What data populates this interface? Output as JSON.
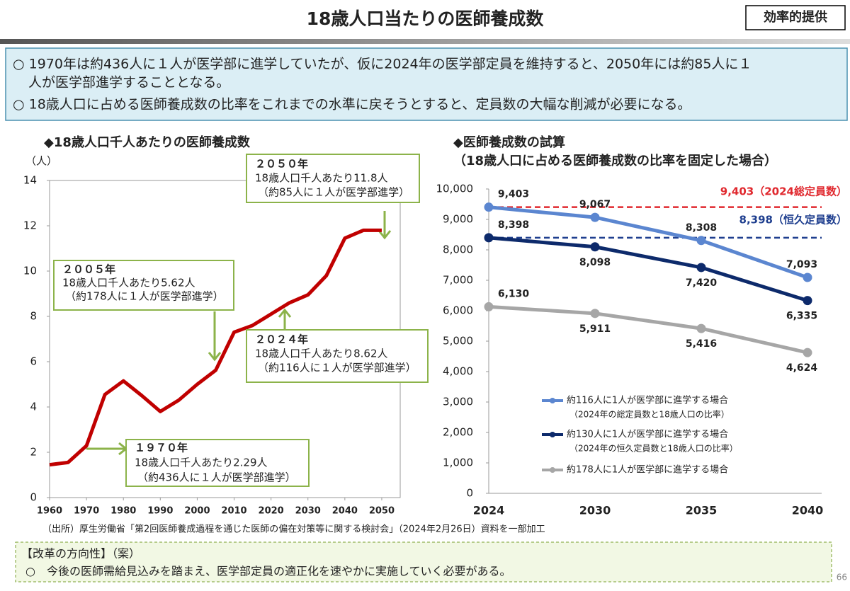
{
  "header": {
    "title": "18歳人口当たりの医師養成数",
    "badge": "効率的提供"
  },
  "summary": [
    [
      "○ 1970年は約436人に１人が医学部に進学していたが、仮に2024年の医学部定員を維持すると、2050年には約85人に１",
      "人が医学部進学することとなる。"
    ],
    [
      "○ 18歳人口に占める医師養成数の比率をこれまでの水準に戻そうとすると、定員数の大幅な削減が必要になる。"
    ]
  ],
  "chart_data": [
    {
      "type": "line",
      "title": "◆18歳人口千人あたりの医師養成数",
      "y_label": "（人）",
      "x": [
        1960,
        1965,
        1970,
        1975,
        1980,
        1985,
        1990,
        1995,
        2000,
        2005,
        2010,
        2015,
        2020,
        2025,
        2030,
        2035,
        2040,
        2045,
        2050
      ],
      "series": [
        {
          "color": "#c00000",
          "values": [
            1.45,
            1.55,
            2.29,
            4.55,
            5.15,
            4.5,
            3.8,
            4.3,
            5.0,
            5.62,
            7.3,
            7.6,
            8.1,
            8.6,
            8.95,
            9.8,
            11.45,
            11.8,
            11.8
          ]
        }
      ],
      "xlim": [
        1960,
        2055
      ],
      "xticks": [
        1960,
        1970,
        1980,
        1990,
        2000,
        2010,
        2020,
        2030,
        2040,
        2050
      ],
      "ylim": [
        0,
        14
      ],
      "yticks": [
        0,
        2,
        4,
        6,
        8,
        10,
        12,
        14
      ],
      "grid": false,
      "annotations": [
        {
          "lines": [
            "２０５０年",
            "18歳人口千人あたり11.8人",
            "（約85人に１人が医学部進学）"
          ]
        },
        {
          "lines": [
            "２００５年",
            "18歳人口千人あたり5.62人",
            "（約178人に１人が医学部進学）"
          ]
        },
        {
          "lines": [
            "２０２４年",
            "18歳人口千人あたり8.62人",
            "（約116人に１人が医学部進学）"
          ]
        },
        {
          "lines": [
            "１９７０年",
            "18歳人口千人あたり2.29人",
            "（約436人に１人が医学部進学）"
          ]
        }
      ]
    },
    {
      "type": "line",
      "title": [
        "◆医師養成数の試算",
        "（18歳人口に占める医師養成数の比率を固定した場合）"
      ],
      "categories": [
        "2024",
        "2030",
        "2035",
        "2040"
      ],
      "series": [
        {
          "name": "約116人に1人が医学部に進学する場合",
          "note": "（2024年の総定員数と18歳人口の比率）",
          "color": "#5b86d0",
          "values": [
            9403,
            9067,
            8308,
            7093
          ],
          "value_labels": [
            "9,403",
            "9,067",
            "8,308",
            "7,093"
          ]
        },
        {
          "name": "約130人に1人が医学部に進学する場合",
          "note": "（2024年の恒久定員数と18歳人口の比率）",
          "color": "#0d2a6b",
          "values": [
            8398,
            8098,
            7420,
            6335
          ],
          "value_labels": [
            "8,398",
            "8,098",
            "7,420",
            "6,335"
          ]
        },
        {
          "name": "約178人に1人が医学部に進学する場合",
          "color": "#a6a6a6",
          "values": [
            6130,
            5911,
            5416,
            4624
          ],
          "value_labels": [
            "6,130",
            "5,911",
            "5,416",
            "4,624"
          ]
        }
      ],
      "reference_lines": [
        {
          "value": 9403,
          "label": "9,403（2024総定員数）",
          "color": "#e0282e"
        },
        {
          "value": 8398,
          "label": "8,398（恒久定員数）",
          "color": "#1f3f8f"
        }
      ],
      "ylim": [
        0,
        10000
      ],
      "yticks": [
        0,
        {
          "value": 1000,
          "label": "1,000"
        },
        {
          "value": 2000,
          "label": "2,000"
        },
        {
          "value": 3000,
          "label": "3,000"
        },
        {
          "value": 4000,
          "label": "4,000"
        },
        {
          "value": 5000,
          "label": "5,000"
        },
        {
          "value": 6000,
          "label": "6,000"
        },
        {
          "value": 7000,
          "label": "7,000"
        },
        {
          "value": 8000,
          "label": "8,000"
        },
        {
          "value": 9000,
          "label": "9,000"
        },
        {
          "value": 10000,
          "label": "10,000"
        }
      ],
      "grid": false
    }
  ],
  "source": "（出所）厚生労働省「第2回医師養成過程を通じた医師の偏在対策等に関する検討会」（2024年2月26日）資料を一部加工",
  "footer": {
    "heading": "【改革の方向性】（案）",
    "text": "○　今後の医師需給見込みを踏まえ、医学部定員の適正化を速やかに実施していく必要がある。"
  },
  "page_number": "66"
}
